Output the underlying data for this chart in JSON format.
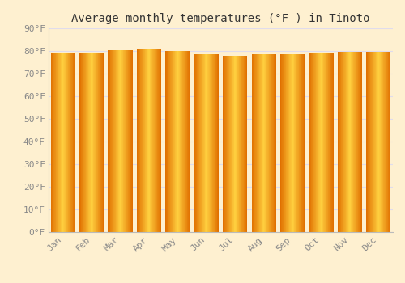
{
  "title": "Average monthly temperatures (°F ) in Tinoto",
  "months": [
    "Jan",
    "Feb",
    "Mar",
    "Apr",
    "May",
    "Jun",
    "Jul",
    "Aug",
    "Sep",
    "Oct",
    "Nov",
    "Dec"
  ],
  "values": [
    79.0,
    79.0,
    80.5,
    81.0,
    80.0,
    78.5,
    78.0,
    78.5,
    78.5,
    79.0,
    79.5,
    79.5
  ],
  "ylim": [
    0,
    90
  ],
  "yticks": [
    0,
    10,
    20,
    30,
    40,
    50,
    60,
    70,
    80,
    90
  ],
  "ytick_labels": [
    "0°F",
    "10°F",
    "20°F",
    "30°F",
    "40°F",
    "50°F",
    "60°F",
    "70°F",
    "80°F",
    "90°F"
  ],
  "bar_color_left": "#E07000",
  "bar_color_center": "#FFD040",
  "bar_color_right": "#E07000",
  "background_color": "#FEF0D0",
  "figure_bg": "#FEF0D0",
  "grid_color": "#E0DCEC",
  "title_fontsize": 10,
  "tick_fontsize": 8,
  "font_family": "monospace",
  "bar_width": 0.85
}
